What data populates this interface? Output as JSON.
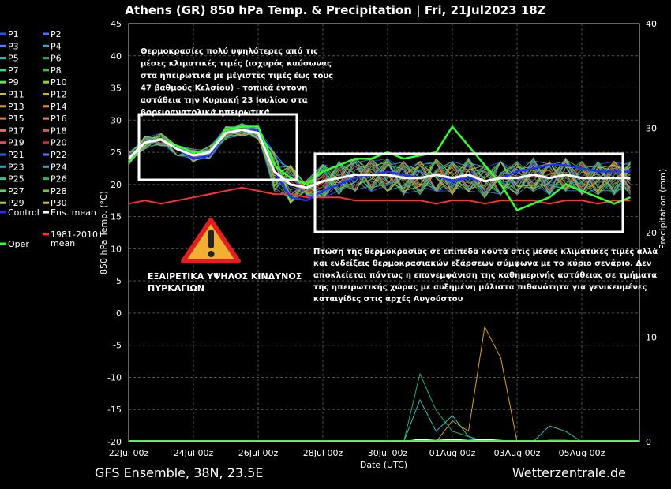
{
  "chart_data": {
    "type": "line",
    "title": "Athens  (GR)  850 hPa Temp. & Precipitation | Fri, 21Jul2023 18Z",
    "xlabel": "Date (UTC)",
    "ylabel": "850 hPa Temp. (°C)",
    "y2label": "Precipitation (mm)",
    "ylim": [
      -20,
      45
    ],
    "y2lim": [
      0,
      40
    ],
    "yticks": [
      -20,
      -15,
      -10,
      -5,
      0,
      5,
      10,
      15,
      20,
      25,
      30,
      35,
      40,
      45
    ],
    "y2ticks": [
      0,
      10,
      20,
      30,
      40
    ],
    "x_tick_labels": [
      "22Jul 00z",
      "24Jul 00z",
      "26Jul 00z",
      "28Jul 00z",
      "30Jul 00z",
      "01Aug 00z",
      "03Aug 00z",
      "05Aug 00z"
    ],
    "grid": true,
    "legend_position": "left",
    "legend": [
      {
        "name": "P1",
        "color": "#3050ff"
      },
      {
        "name": "P2",
        "color": "#4070ff"
      },
      {
        "name": "P3",
        "color": "#5a7cff"
      },
      {
        "name": "P4",
        "color": "#4aa0d0"
      },
      {
        "name": "P5",
        "color": "#30c0c0"
      },
      {
        "name": "P6",
        "color": "#20b070"
      },
      {
        "name": "P7",
        "color": "#40d0a0"
      },
      {
        "name": "P8",
        "color": "#40c040"
      },
      {
        "name": "P9",
        "color": "#70e040"
      },
      {
        "name": "P10",
        "color": "#90d030"
      },
      {
        "name": "P11",
        "color": "#c0c040"
      },
      {
        "name": "P12",
        "color": "#d0b030"
      },
      {
        "name": "P13",
        "color": "#d09a30"
      },
      {
        "name": "P14",
        "color": "#e0a020"
      },
      {
        "name": "P15",
        "color": "#e08040"
      },
      {
        "name": "P16",
        "color": "#e09060"
      },
      {
        "name": "P17",
        "color": "#e07050"
      },
      {
        "name": "P18",
        "color": "#d06040"
      },
      {
        "name": "P19",
        "color": "#e05050"
      },
      {
        "name": "P20",
        "color": "#c03030"
      },
      {
        "name": "P21",
        "color": "#3060e0"
      },
      {
        "name": "P22",
        "color": "#5080ff"
      },
      {
        "name": "P23",
        "color": "#30a0c0"
      },
      {
        "name": "P24",
        "color": "#30b0b0"
      },
      {
        "name": "P25",
        "color": "#30c090"
      },
      {
        "name": "P26",
        "color": "#20c060"
      },
      {
        "name": "P27",
        "color": "#60d060"
      },
      {
        "name": "P28",
        "color": "#80c040"
      },
      {
        "name": "P29",
        "color": "#b0d040"
      },
      {
        "name": "P30",
        "color": "#d0c040"
      },
      {
        "name": "Control",
        "color": "#2030ff"
      },
      {
        "name": "Ens. mean",
        "color": "#ffffff"
      },
      {
        "name": "1981-2010 mean",
        "color": "#ff3030"
      },
      {
        "name": "Oper",
        "color": "#30ff30"
      }
    ],
    "x_days": [
      0,
      0.5,
      1,
      1.5,
      2,
      2.5,
      3,
      3.5,
      4,
      4.5,
      5,
      5.5,
      6,
      6.5,
      7,
      7.5,
      8,
      8.5,
      9,
      9.5,
      10,
      10.5,
      11,
      11.5,
      12,
      12.5,
      13,
      13.5,
      14,
      14.5,
      15,
      15.5
    ],
    "series": [
      {
        "name": "Ens. mean",
        "values": [
          24,
          26.5,
          27,
          25.5,
          24.5,
          25,
          28,
          28.5,
          28,
          22,
          20,
          19.5,
          20.5,
          21,
          21.5,
          21.5,
          21.5,
          21,
          21,
          21.5,
          21,
          21.5,
          20.5,
          21,
          21,
          21.5,
          21,
          21.5,
          21,
          21,
          21,
          21
        ]
      },
      {
        "name": "Oper",
        "values": [
          23.5,
          26.5,
          27,
          26,
          25,
          25,
          28.5,
          29,
          29,
          23,
          21,
          20,
          22,
          23,
          24,
          24,
          25,
          24,
          24.5,
          25,
          29,
          26,
          23,
          20,
          16,
          17,
          18,
          20,
          19,
          18,
          17,
          18
        ]
      },
      {
        "name": "Control",
        "values": [
          23.5,
          26.5,
          27,
          25.5,
          24,
          24.5,
          28,
          28.5,
          28.5,
          22,
          18,
          17.5,
          19,
          20,
          21,
          21.5,
          22,
          21.5,
          21,
          21.5,
          20.5,
          21,
          20.5,
          21,
          22,
          22.5,
          23,
          23,
          22.5,
          22,
          22,
          22
        ]
      },
      {
        "name": "1981-2010 mean",
        "values": [
          17,
          17.5,
          17,
          17.5,
          18,
          18.5,
          19,
          19.5,
          19,
          18.5,
          18.5,
          18,
          18,
          18,
          17.5,
          17.5,
          17.5,
          17.5,
          17.5,
          17,
          17.5,
          17.5,
          17,
          17.5,
          17.5,
          17.5,
          17,
          17.5,
          17.5,
          17,
          17.5,
          17.5
        ]
      }
    ],
    "precip_series": [
      {
        "name": "P14",
        "values": [
          0,
          0,
          0,
          0,
          0,
          0,
          0,
          0,
          0,
          0,
          0,
          0,
          0,
          0,
          0,
          0,
          0,
          0,
          0,
          0,
          2,
          1,
          11,
          8,
          0,
          0,
          0,
          0,
          0,
          0,
          0,
          0
        ]
      },
      {
        "name": "P6",
        "values": [
          0,
          0,
          0,
          0,
          0,
          0,
          0,
          0,
          0,
          0,
          0,
          0,
          0,
          0,
          0,
          0,
          0,
          0,
          6.5,
          3,
          1,
          0.5,
          0,
          0,
          0,
          0,
          0,
          0,
          0,
          0,
          0,
          0
        ]
      },
      {
        "name": "P5",
        "values": [
          0,
          0,
          0,
          0,
          0,
          0,
          0,
          0,
          0,
          0,
          0,
          0,
          0,
          0,
          0,
          0,
          0,
          0,
          4,
          1,
          2.5,
          0.5,
          0,
          0,
          0,
          0,
          1.5,
          1,
          0,
          0,
          0,
          0
        ]
      },
      {
        "name": "Ens. mean",
        "values": [
          0,
          0,
          0,
          0,
          0,
          0,
          0,
          0,
          0,
          0,
          0,
          0,
          0,
          0,
          0,
          0,
          0,
          0,
          0.2,
          0.1,
          0.2,
          0.1,
          0.2,
          0.1,
          0,
          0,
          0.1,
          0.1,
          0,
          0,
          0,
          0
        ]
      }
    ]
  },
  "annotations": {
    "top_lines": [
      "Θερμοκρασίες πολύ υψηλότερες από τις",
      "μέσες κλιματικές τιμές (ισχυρός καύσωνας",
      "στα ηπειρωτικά με μέγιστες τιμές έως τους",
      "47 βαθμούς Κελσίου) - τοπικά έντονη",
      "αστάθεια την Κυριακή 23 Ιουλίου στα",
      "βορειοανατολικά ηπειρωτικά"
    ],
    "bottom_lines": [
      "Πτώση της θερμοκρασίας σε επίπεδα κοντά στις μέσες κλιματικές τιμές αλλά",
      "και ενδείξεις θερμοκρασιακών εξάρσεων σύμφωνα με το κύριο σενάριο. Δεν",
      "αποκλείεται πάντως η επανεμφάνιση της καθημερινής αστάθειας σε τμήματα",
      "της ηπειρωτικής χώρας με αυξημένη μάλιστα πιθανότητα για γενικευμένες",
      "καταιγίδες στις αρχές Αυγούστου"
    ],
    "warning_lines": [
      "ΕΞΑΙΡΕΤΙΚΑ ΥΨΗΛΟΣ ΚΙΝΔΥΝΟΣ",
      "ΠΥΡΚΑΓΙΩΝ"
    ],
    "warning_icon": "warning-triangle-icon"
  },
  "footer": {
    "left": "GFS Ensemble, 38N, 23.5E",
    "right": "Wetterzentrale.de"
  }
}
